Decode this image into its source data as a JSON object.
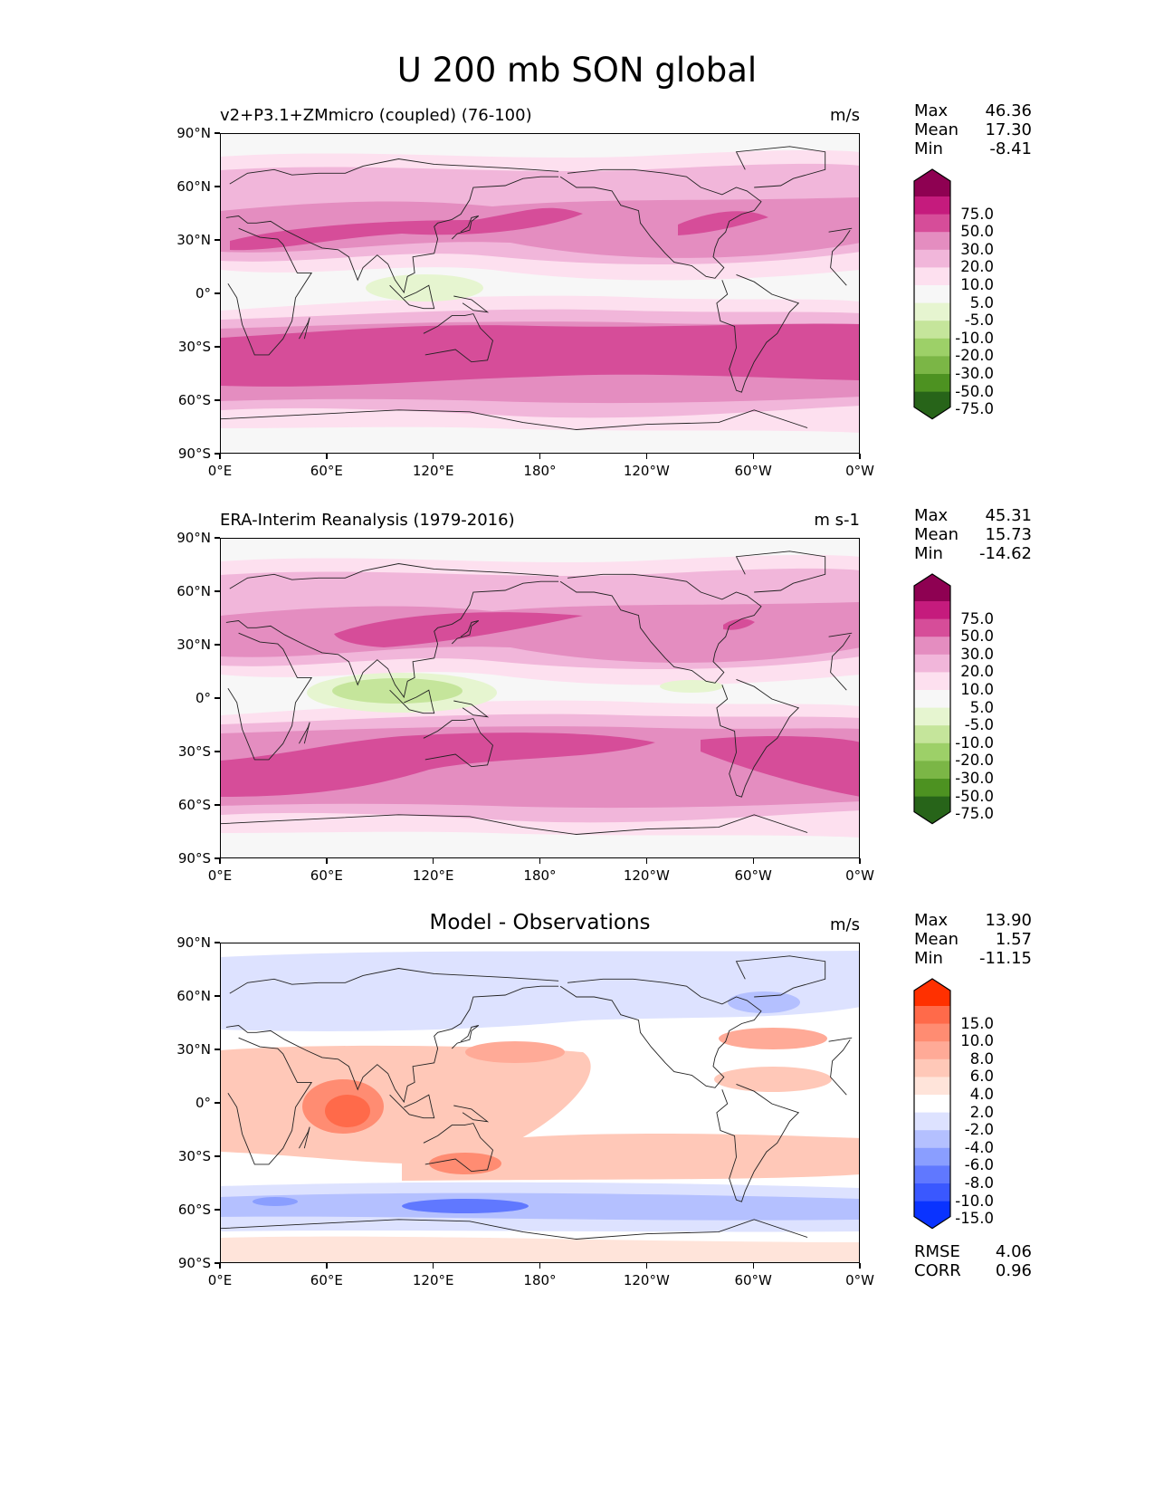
{
  "figure_title": "U 200 mb SON global",
  "axis": {
    "lat_labels": [
      "90°N",
      "60°N",
      "30°N",
      "0°",
      "30°S",
      "60°S",
      "90°S"
    ],
    "lon_labels": [
      "0°E",
      "60°E",
      "120°E",
      "180°",
      "120°W",
      "60°W",
      "0°W"
    ]
  },
  "panels": [
    {
      "name": "model",
      "left_title": "v2+P3.1+ZMmicro (coupled) (76-100)",
      "center_title": "",
      "units": "m/s",
      "stats": [
        {
          "k": "Max",
          "v": "46.36"
        },
        {
          "k": "Mean",
          "v": "17.30"
        },
        {
          "k": "Min",
          "v": "-8.41"
        }
      ],
      "colorbar": "wind"
    },
    {
      "name": "obs",
      "left_title": "ERA-Interim Reanalysis (1979-2016)",
      "center_title": "",
      "units": "m s-1",
      "stats": [
        {
          "k": "Max",
          "v": "45.31"
        },
        {
          "k": "Mean",
          "v": "15.73"
        },
        {
          "k": "Min",
          "v": "-14.62"
        }
      ],
      "colorbar": "wind"
    },
    {
      "name": "diff",
      "left_title": "",
      "center_title": "Model - Observations",
      "units": "m/s",
      "stats": [
        {
          "k": "Max",
          "v": "13.90"
        },
        {
          "k": "Mean",
          "v": "1.57"
        },
        {
          "k": "Min",
          "v": "-11.15"
        }
      ],
      "colorbar": "diff",
      "extra_stats": [
        {
          "k": "RMSE",
          "v": "4.06"
        },
        {
          "k": "CORR",
          "v": "0.96"
        }
      ]
    }
  ],
  "colorbars": {
    "wind": {
      "labels": [
        "75.0",
        "50.0",
        "30.0",
        "20.0",
        "10.0",
        "5.0",
        "-5.0",
        "-10.0",
        "-20.0",
        "-30.0",
        "-50.0",
        "-75.0"
      ],
      "colors": [
        "#8e0152",
        "#c51b7d",
        "#d64d99",
        "#e48dc0",
        "#f1b6da",
        "#fde0ef",
        "#f7f7f7",
        "#e6f5d0",
        "#c5e59b",
        "#9dd068",
        "#7bb646",
        "#4d9221",
        "#276419"
      ]
    },
    "diff": {
      "labels": [
        "15.0",
        "10.0",
        "8.0",
        "6.0",
        "4.0",
        "2.0",
        "-2.0",
        "-4.0",
        "-6.0",
        "-8.0",
        "-10.0",
        "-15.0"
      ],
      "colors": [
        "#ff3000",
        "#ff6a4a",
        "#ff8c72",
        "#ffaa97",
        "#ffc8b8",
        "#ffe4da",
        "#ffffff",
        "#dde2ff",
        "#b4c0ff",
        "#8a9eff",
        "#6078ff",
        "#3a58ff",
        "#0a33ff"
      ]
    }
  }
}
